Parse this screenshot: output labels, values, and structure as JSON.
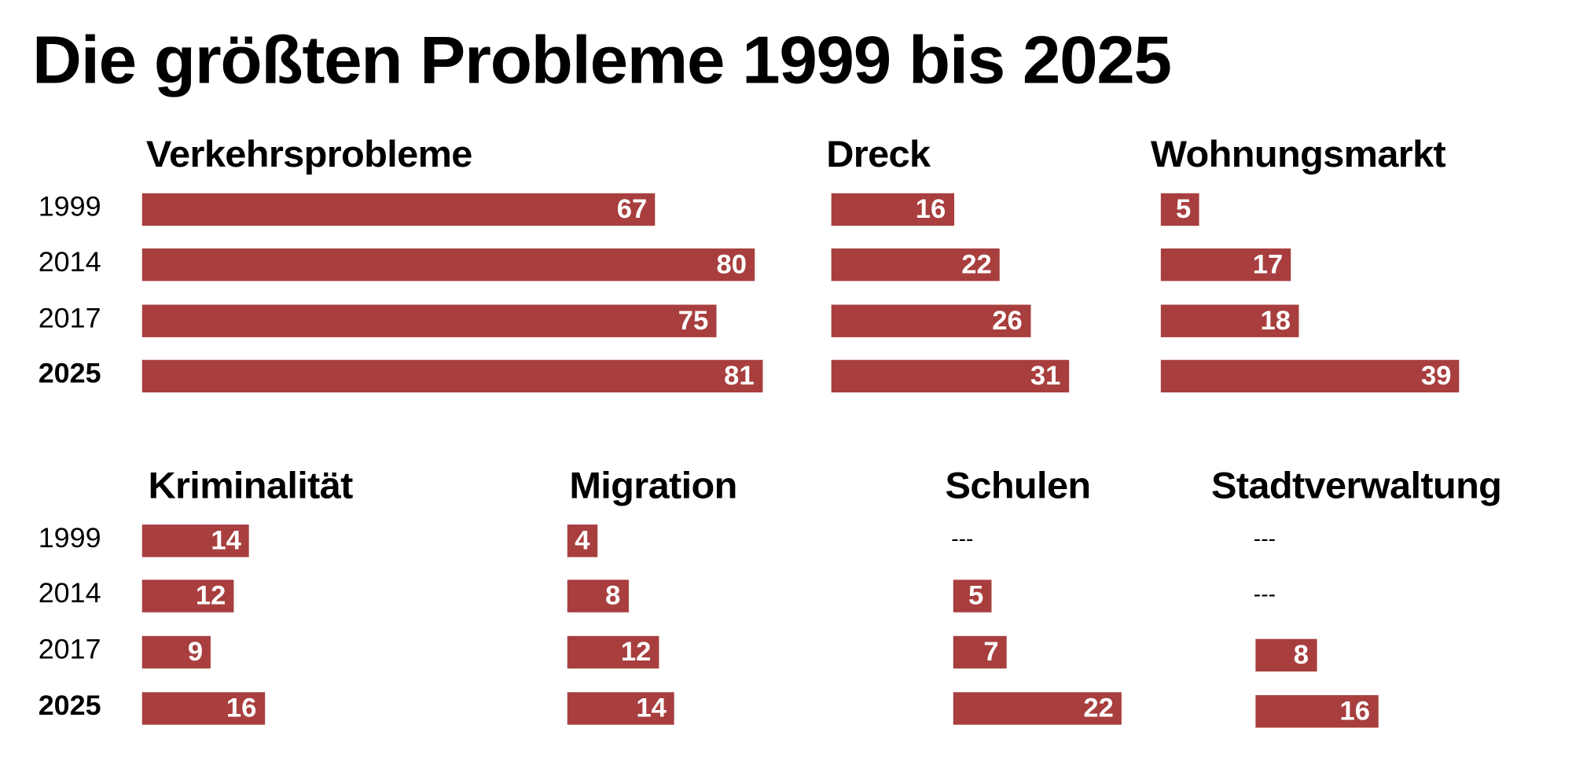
{
  "chart_data": {
    "type": "bar",
    "title": "Die größten Probleme 1999 bis 2025",
    "categories": [
      "1999",
      "2014",
      "2017",
      "2025"
    ],
    "highlight_category": "2025",
    "missing_label": "---",
    "bar_color": "#a83e3e",
    "series": [
      {
        "name": "Verkehrsprobleme",
        "values": [
          67,
          80,
          75,
          81
        ]
      },
      {
        "name": "Dreck",
        "values": [
          16,
          22,
          26,
          31
        ]
      },
      {
        "name": "Wohnungsmarkt",
        "values": [
          5,
          17,
          18,
          39
        ]
      },
      {
        "name": "Kriminalität",
        "values": [
          14,
          12,
          9,
          16
        ]
      },
      {
        "name": "Migration",
        "values": [
          4,
          8,
          12,
          14
        ]
      },
      {
        "name": "Schulen",
        "values": [
          null,
          5,
          7,
          22
        ]
      },
      {
        "name": "Stadtverwaltung",
        "values": [
          null,
          null,
          8,
          16
        ]
      }
    ]
  }
}
